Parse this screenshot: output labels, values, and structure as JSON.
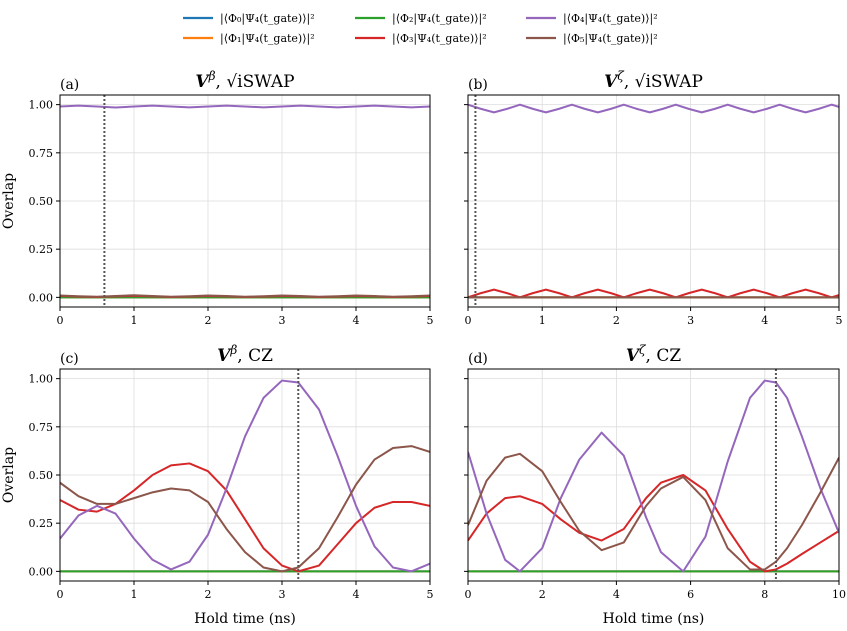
{
  "figure": {
    "colors": {
      "phi0": "#1f77b4",
      "phi1": "#ff7f0e",
      "phi2": "#2ca02c",
      "phi3": "#d62728",
      "phi4": "#9467bd",
      "phi5": "#8c564b",
      "marker": "#555555",
      "grid": "#dddddd"
    },
    "legend": [
      {
        "key": "phi0",
        "label": "|⟨Φ₀|Ψ₄(t_gate)⟩|²"
      },
      {
        "key": "phi1",
        "label": "|⟨Φ₁|Ψ₄(t_gate)⟩|²"
      },
      {
        "key": "phi2",
        "label": "|⟨Φ₂|Ψ₄(t_gate)⟩|²"
      },
      {
        "key": "phi3",
        "label": "|⟨Φ₃|Ψ₄(t_gate)⟩|²"
      },
      {
        "key": "phi4",
        "label": "|⟨Φ₄|Ψ₄(t_gate)⟩|²"
      },
      {
        "key": "phi5",
        "label": "|⟨Φ₅|Ψ₄(t_gate)⟩|²"
      }
    ]
  },
  "chart_data": [
    {
      "type": "line",
      "panel": "(a)",
      "title": "V^β, √iSWAP",
      "title_main": "V",
      "title_sup": "β",
      "title_gate": "√iSWAP",
      "xlabel": "",
      "ylabel": "Overlap",
      "xlim": [
        0,
        5
      ],
      "ylim": [
        -0.05,
        1.05
      ],
      "xticks": [
        0,
        1,
        2,
        3,
        4,
        5
      ],
      "yticks": [
        0.0,
        0.25,
        0.5,
        0.75,
        1.0
      ],
      "xtick_labels": [
        "0",
        "1",
        "2",
        "3",
        "4",
        "5"
      ],
      "ytick_labels": [
        "0.00",
        "0.25",
        "0.50",
        "0.75",
        "1.00"
      ],
      "marker_x": 0.6,
      "x": [
        0,
        0.25,
        0.5,
        0.75,
        1.0,
        1.25,
        1.5,
        1.75,
        2.0,
        2.25,
        2.5,
        2.75,
        3.0,
        3.25,
        3.5,
        3.75,
        4.0,
        4.25,
        4.5,
        4.75,
        5.0
      ],
      "series": [
        {
          "name": "phi0",
          "values": [
            0.0,
            0.0,
            0.0,
            0.0,
            0.0,
            0.0,
            0.0,
            0.0,
            0.0,
            0.0,
            0.0,
            0.0,
            0.0,
            0.0,
            0.0,
            0.0,
            0.0,
            0.0,
            0.0,
            0.0,
            0.0
          ]
        },
        {
          "name": "phi1",
          "values": [
            0.0,
            0.0,
            0.0,
            0.0,
            0.0,
            0.0,
            0.0,
            0.0,
            0.0,
            0.0,
            0.0,
            0.0,
            0.0,
            0.0,
            0.0,
            0.0,
            0.0,
            0.0,
            0.0,
            0.0,
            0.0
          ]
        },
        {
          "name": "phi2",
          "values": [
            0.0,
            0.0,
            0.0,
            0.0,
            0.0,
            0.0,
            0.0,
            0.0,
            0.0,
            0.0,
            0.0,
            0.0,
            0.0,
            0.0,
            0.0,
            0.0,
            0.0,
            0.0,
            0.0,
            0.0,
            0.0
          ]
        },
        {
          "name": "phi3",
          "values": [
            0.008,
            0.004,
            0.002,
            0.005,
            0.008,
            0.005,
            0.002,
            0.004,
            0.007,
            0.005,
            0.002,
            0.004,
            0.007,
            0.005,
            0.002,
            0.004,
            0.007,
            0.005,
            0.002,
            0.004,
            0.007
          ]
        },
        {
          "name": "phi4",
          "values": [
            0.99,
            0.995,
            0.99,
            0.985,
            0.99,
            0.995,
            0.99,
            0.986,
            0.99,
            0.995,
            0.99,
            0.986,
            0.99,
            0.995,
            0.99,
            0.986,
            0.99,
            0.995,
            0.99,
            0.986,
            0.99
          ]
        },
        {
          "name": "phi5",
          "values": [
            0.01,
            0.006,
            0.003,
            0.007,
            0.011,
            0.007,
            0.003,
            0.006,
            0.01,
            0.007,
            0.003,
            0.006,
            0.01,
            0.007,
            0.003,
            0.006,
            0.01,
            0.007,
            0.003,
            0.006,
            0.01
          ]
        }
      ]
    },
    {
      "type": "line",
      "panel": "(b)",
      "title": "V^ζ, √iSWAP",
      "title_main": "V",
      "title_sup": "ζ",
      "title_gate": "√iSWAP",
      "xlabel": "",
      "ylabel": "",
      "xlim": [
        0,
        5
      ],
      "ylim": [
        -0.05,
        1.05
      ],
      "xticks": [
        0,
        1,
        2,
        3,
        4,
        5
      ],
      "yticks": [
        0.0,
        0.25,
        0.5,
        0.75,
        1.0
      ],
      "xtick_labels": [
        "0",
        "1",
        "2",
        "3",
        "4",
        "5"
      ],
      "ytick_labels": [
        "",
        "",
        "",
        "",
        ""
      ],
      "marker_x": 0.1,
      "x": [
        0,
        0.175,
        0.35,
        0.525,
        0.7,
        0.875,
        1.05,
        1.225,
        1.4,
        1.575,
        1.75,
        1.925,
        2.1,
        2.275,
        2.45,
        2.625,
        2.8,
        2.975,
        3.15,
        3.325,
        3.5,
        3.675,
        3.85,
        4.025,
        4.2,
        4.375,
        4.55,
        4.725,
        4.9,
        5.0
      ],
      "series": [
        {
          "name": "phi0",
          "values": [
            0.0,
            0.0,
            0.0,
            0.0,
            0.0,
            0.0,
            0.0,
            0.0,
            0.0,
            0.0,
            0.0,
            0.0,
            0.0,
            0.0,
            0.0,
            0.0,
            0.0,
            0.0,
            0.0,
            0.0,
            0.0,
            0.0,
            0.0,
            0.0,
            0.0,
            0.0,
            0.0,
            0.0,
            0.0,
            0.0
          ]
        },
        {
          "name": "phi1",
          "values": [
            0.0,
            0.0,
            0.0,
            0.0,
            0.0,
            0.0,
            0.0,
            0.0,
            0.0,
            0.0,
            0.0,
            0.0,
            0.0,
            0.0,
            0.0,
            0.0,
            0.0,
            0.0,
            0.0,
            0.0,
            0.0,
            0.0,
            0.0,
            0.0,
            0.0,
            0.0,
            0.0,
            0.0,
            0.0,
            0.0
          ]
        },
        {
          "name": "phi2",
          "values": [
            0.0,
            0.0,
            0.0,
            0.0,
            0.0,
            0.0,
            0.0,
            0.0,
            0.0,
            0.0,
            0.0,
            0.0,
            0.0,
            0.0,
            0.0,
            0.0,
            0.0,
            0.0,
            0.0,
            0.0,
            0.0,
            0.0,
            0.0,
            0.0,
            0.0,
            0.0,
            0.0,
            0.0,
            0.0,
            0.0
          ]
        },
        {
          "name": "phi3",
          "values": [
            0.0,
            0.022,
            0.04,
            0.022,
            0.0,
            0.022,
            0.04,
            0.022,
            0.0,
            0.022,
            0.04,
            0.022,
            0.0,
            0.022,
            0.04,
            0.022,
            0.0,
            0.022,
            0.04,
            0.022,
            0.0,
            0.022,
            0.04,
            0.022,
            0.0,
            0.022,
            0.04,
            0.022,
            0.0,
            0.012
          ]
        },
        {
          "name": "phi4",
          "values": [
            1.0,
            0.978,
            0.96,
            0.978,
            1.0,
            0.978,
            0.96,
            0.978,
            1.0,
            0.978,
            0.96,
            0.978,
            1.0,
            0.978,
            0.96,
            0.978,
            1.0,
            0.978,
            0.96,
            0.978,
            1.0,
            0.978,
            0.96,
            0.978,
            1.0,
            0.978,
            0.96,
            0.978,
            1.0,
            0.988
          ]
        },
        {
          "name": "phi5",
          "values": [
            0.0,
            0.0,
            0.0,
            0.0,
            0.0,
            0.0,
            0.0,
            0.0,
            0.0,
            0.0,
            0.0,
            0.0,
            0.0,
            0.0,
            0.0,
            0.0,
            0.0,
            0.0,
            0.0,
            0.0,
            0.0,
            0.0,
            0.0,
            0.0,
            0.0,
            0.0,
            0.0,
            0.0,
            0.0,
            0.0
          ]
        }
      ]
    },
    {
      "type": "line",
      "panel": "(c)",
      "title": "V^β, CZ",
      "title_main": "V",
      "title_sup": "β",
      "title_gate": "CZ",
      "xlabel": "Hold time (ns)",
      "ylabel": "Overlap",
      "xlim": [
        0,
        5
      ],
      "ylim": [
        -0.05,
        1.05
      ],
      "xticks": [
        0,
        1,
        2,
        3,
        4,
        5
      ],
      "yticks": [
        0.0,
        0.25,
        0.5,
        0.75,
        1.0
      ],
      "xtick_labels": [
        "0",
        "1",
        "2",
        "3",
        "4",
        "5"
      ],
      "ytick_labels": [
        "0.00",
        "0.25",
        "0.50",
        "0.75",
        "1.00"
      ],
      "marker_x": 3.22,
      "x": [
        0,
        0.25,
        0.5,
        0.75,
        1.0,
        1.25,
        1.5,
        1.75,
        2.0,
        2.25,
        2.5,
        2.75,
        3.0,
        3.22,
        3.5,
        3.75,
        4.0,
        4.25,
        4.5,
        4.75,
        5.0
      ],
      "series": [
        {
          "name": "phi0",
          "values": [
            0.0,
            0.0,
            0.0,
            0.0,
            0.0,
            0.0,
            0.0,
            0.0,
            0.0,
            0.0,
            0.0,
            0.0,
            0.0,
            0.0,
            0.0,
            0.0,
            0.0,
            0.0,
            0.0,
            0.0,
            0.0
          ]
        },
        {
          "name": "phi1",
          "values": [
            0.0,
            0.0,
            0.0,
            0.0,
            0.0,
            0.0,
            0.0,
            0.0,
            0.0,
            0.0,
            0.0,
            0.0,
            0.0,
            0.0,
            0.0,
            0.0,
            0.0,
            0.0,
            0.0,
            0.0,
            0.0
          ]
        },
        {
          "name": "phi2",
          "values": [
            0.0,
            0.0,
            0.0,
            0.0,
            0.0,
            0.0,
            0.0,
            0.0,
            0.0,
            0.0,
            0.0,
            0.0,
            0.0,
            0.0,
            0.0,
            0.0,
            0.0,
            0.0,
            0.0,
            0.0,
            0.0
          ]
        },
        {
          "name": "phi3",
          "values": [
            0.37,
            0.32,
            0.31,
            0.35,
            0.42,
            0.5,
            0.55,
            0.56,
            0.52,
            0.42,
            0.27,
            0.12,
            0.03,
            0.0,
            0.03,
            0.14,
            0.25,
            0.33,
            0.36,
            0.36,
            0.34
          ]
        },
        {
          "name": "phi4",
          "values": [
            0.17,
            0.29,
            0.34,
            0.3,
            0.17,
            0.06,
            0.01,
            0.05,
            0.19,
            0.43,
            0.7,
            0.9,
            0.99,
            0.98,
            0.84,
            0.6,
            0.34,
            0.13,
            0.02,
            0.0,
            0.04
          ]
        },
        {
          "name": "phi5",
          "values": [
            0.46,
            0.39,
            0.35,
            0.35,
            0.38,
            0.41,
            0.43,
            0.42,
            0.36,
            0.22,
            0.1,
            0.02,
            0.0,
            0.02,
            0.12,
            0.28,
            0.45,
            0.58,
            0.64,
            0.65,
            0.62
          ]
        }
      ]
    },
    {
      "type": "line",
      "panel": "(d)",
      "title": "V^ζ, CZ",
      "title_main": "V",
      "title_sup": "ζ",
      "title_gate": "CZ",
      "xlabel": "Hold time (ns)",
      "ylabel": "",
      "xlim": [
        0,
        10
      ],
      "ylim": [
        -0.05,
        1.05
      ],
      "xticks": [
        0,
        2,
        4,
        6,
        8,
        10
      ],
      "yticks": [
        0.0,
        0.25,
        0.5,
        0.75,
        1.0
      ],
      "xtick_labels": [
        "0",
        "2",
        "4",
        "6",
        "8",
        "10"
      ],
      "ytick_labels": [
        "",
        "",
        "",
        "",
        ""
      ],
      "marker_x": 8.3,
      "x": [
        0,
        0.5,
        1.0,
        1.4,
        2.0,
        2.5,
        3.0,
        3.6,
        4.2,
        4.8,
        5.2,
        5.8,
        6.4,
        7.0,
        7.6,
        8.0,
        8.3,
        8.6,
        9.0,
        9.5,
        10.0
      ],
      "series": [
        {
          "name": "phi0",
          "values": [
            0.0,
            0.0,
            0.0,
            0.0,
            0.0,
            0.0,
            0.0,
            0.0,
            0.0,
            0.0,
            0.0,
            0.0,
            0.0,
            0.0,
            0.0,
            0.0,
            0.0,
            0.0,
            0.0,
            0.0,
            0.0
          ]
        },
        {
          "name": "phi1",
          "values": [
            0.0,
            0.0,
            0.0,
            0.0,
            0.0,
            0.0,
            0.0,
            0.0,
            0.0,
            0.0,
            0.0,
            0.0,
            0.0,
            0.0,
            0.0,
            0.0,
            0.0,
            0.0,
            0.0,
            0.0,
            0.0
          ]
        },
        {
          "name": "phi2",
          "values": [
            0.0,
            0.0,
            0.0,
            0.0,
            0.0,
            0.0,
            0.0,
            0.0,
            0.0,
            0.0,
            0.0,
            0.0,
            0.0,
            0.0,
            0.0,
            0.0,
            0.0,
            0.0,
            0.0,
            0.0,
            0.0
          ]
        },
        {
          "name": "phi3",
          "values": [
            0.16,
            0.3,
            0.38,
            0.39,
            0.35,
            0.27,
            0.2,
            0.16,
            0.22,
            0.38,
            0.46,
            0.5,
            0.42,
            0.22,
            0.05,
            0.0,
            0.01,
            0.04,
            0.09,
            0.15,
            0.21
          ]
        },
        {
          "name": "phi4",
          "values": [
            0.62,
            0.3,
            0.06,
            0.0,
            0.12,
            0.38,
            0.58,
            0.72,
            0.6,
            0.28,
            0.1,
            0.0,
            0.18,
            0.57,
            0.9,
            0.99,
            0.98,
            0.9,
            0.7,
            0.43,
            0.2
          ]
        },
        {
          "name": "phi5",
          "values": [
            0.24,
            0.47,
            0.59,
            0.61,
            0.52,
            0.36,
            0.21,
            0.11,
            0.15,
            0.34,
            0.43,
            0.49,
            0.37,
            0.12,
            0.01,
            0.01,
            0.05,
            0.12,
            0.24,
            0.41,
            0.59
          ]
        }
      ]
    }
  ]
}
